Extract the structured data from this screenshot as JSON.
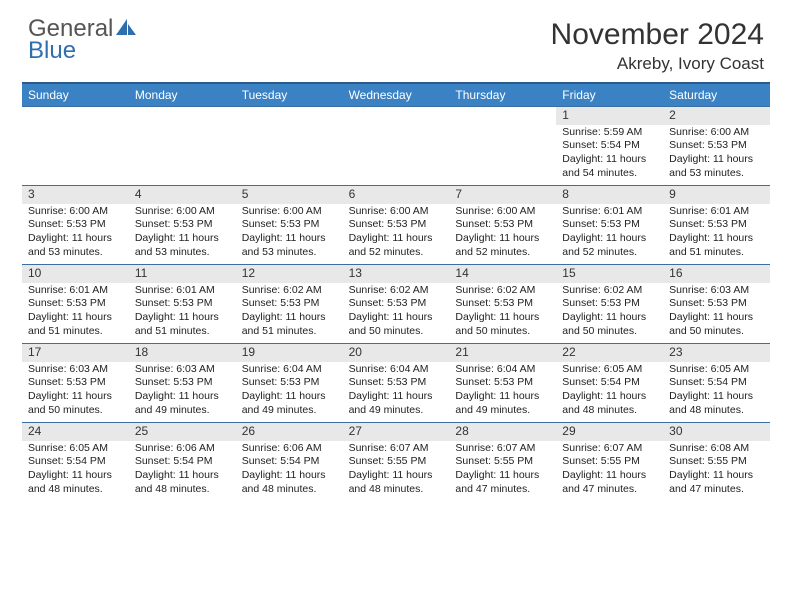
{
  "brand": {
    "word1": "General",
    "word2": "Blue"
  },
  "title": "November 2024",
  "location": "Akreby, Ivory Coast",
  "colors": {
    "header_bg": "#3b82c4",
    "header_border": "#2c5a8a",
    "row_border": "#3b6fa3",
    "daynum_bg": "#e8e8e8",
    "brand_gray": "#555555",
    "brand_blue": "#2f6fb0"
  },
  "day_names": [
    "Sunday",
    "Monday",
    "Tuesday",
    "Wednesday",
    "Thursday",
    "Friday",
    "Saturday"
  ],
  "weeks": [
    [
      null,
      null,
      null,
      null,
      null,
      {
        "n": "1",
        "sr": "5:59 AM",
        "ss": "5:54 PM",
        "dl": "11 hours and 54 minutes."
      },
      {
        "n": "2",
        "sr": "6:00 AM",
        "ss": "5:53 PM",
        "dl": "11 hours and 53 minutes."
      }
    ],
    [
      {
        "n": "3",
        "sr": "6:00 AM",
        "ss": "5:53 PM",
        "dl": "11 hours and 53 minutes."
      },
      {
        "n": "4",
        "sr": "6:00 AM",
        "ss": "5:53 PM",
        "dl": "11 hours and 53 minutes."
      },
      {
        "n": "5",
        "sr": "6:00 AM",
        "ss": "5:53 PM",
        "dl": "11 hours and 53 minutes."
      },
      {
        "n": "6",
        "sr": "6:00 AM",
        "ss": "5:53 PM",
        "dl": "11 hours and 52 minutes."
      },
      {
        "n": "7",
        "sr": "6:00 AM",
        "ss": "5:53 PM",
        "dl": "11 hours and 52 minutes."
      },
      {
        "n": "8",
        "sr": "6:01 AM",
        "ss": "5:53 PM",
        "dl": "11 hours and 52 minutes."
      },
      {
        "n": "9",
        "sr": "6:01 AM",
        "ss": "5:53 PM",
        "dl": "11 hours and 51 minutes."
      }
    ],
    [
      {
        "n": "10",
        "sr": "6:01 AM",
        "ss": "5:53 PM",
        "dl": "11 hours and 51 minutes."
      },
      {
        "n": "11",
        "sr": "6:01 AM",
        "ss": "5:53 PM",
        "dl": "11 hours and 51 minutes."
      },
      {
        "n": "12",
        "sr": "6:02 AM",
        "ss": "5:53 PM",
        "dl": "11 hours and 51 minutes."
      },
      {
        "n": "13",
        "sr": "6:02 AM",
        "ss": "5:53 PM",
        "dl": "11 hours and 50 minutes."
      },
      {
        "n": "14",
        "sr": "6:02 AM",
        "ss": "5:53 PM",
        "dl": "11 hours and 50 minutes."
      },
      {
        "n": "15",
        "sr": "6:02 AM",
        "ss": "5:53 PM",
        "dl": "11 hours and 50 minutes."
      },
      {
        "n": "16",
        "sr": "6:03 AM",
        "ss": "5:53 PM",
        "dl": "11 hours and 50 minutes."
      }
    ],
    [
      {
        "n": "17",
        "sr": "6:03 AM",
        "ss": "5:53 PM",
        "dl": "11 hours and 50 minutes."
      },
      {
        "n": "18",
        "sr": "6:03 AM",
        "ss": "5:53 PM",
        "dl": "11 hours and 49 minutes."
      },
      {
        "n": "19",
        "sr": "6:04 AM",
        "ss": "5:53 PM",
        "dl": "11 hours and 49 minutes."
      },
      {
        "n": "20",
        "sr": "6:04 AM",
        "ss": "5:53 PM",
        "dl": "11 hours and 49 minutes."
      },
      {
        "n": "21",
        "sr": "6:04 AM",
        "ss": "5:53 PM",
        "dl": "11 hours and 49 minutes."
      },
      {
        "n": "22",
        "sr": "6:05 AM",
        "ss": "5:54 PM",
        "dl": "11 hours and 48 minutes."
      },
      {
        "n": "23",
        "sr": "6:05 AM",
        "ss": "5:54 PM",
        "dl": "11 hours and 48 minutes."
      }
    ],
    [
      {
        "n": "24",
        "sr": "6:05 AM",
        "ss": "5:54 PM",
        "dl": "11 hours and 48 minutes."
      },
      {
        "n": "25",
        "sr": "6:06 AM",
        "ss": "5:54 PM",
        "dl": "11 hours and 48 minutes."
      },
      {
        "n": "26",
        "sr": "6:06 AM",
        "ss": "5:54 PM",
        "dl": "11 hours and 48 minutes."
      },
      {
        "n": "27",
        "sr": "6:07 AM",
        "ss": "5:55 PM",
        "dl": "11 hours and 48 minutes."
      },
      {
        "n": "28",
        "sr": "6:07 AM",
        "ss": "5:55 PM",
        "dl": "11 hours and 47 minutes."
      },
      {
        "n": "29",
        "sr": "6:07 AM",
        "ss": "5:55 PM",
        "dl": "11 hours and 47 minutes."
      },
      {
        "n": "30",
        "sr": "6:08 AM",
        "ss": "5:55 PM",
        "dl": "11 hours and 47 minutes."
      }
    ]
  ],
  "labels": {
    "sunrise": "Sunrise:",
    "sunset": "Sunset:",
    "daylight": "Daylight:"
  }
}
